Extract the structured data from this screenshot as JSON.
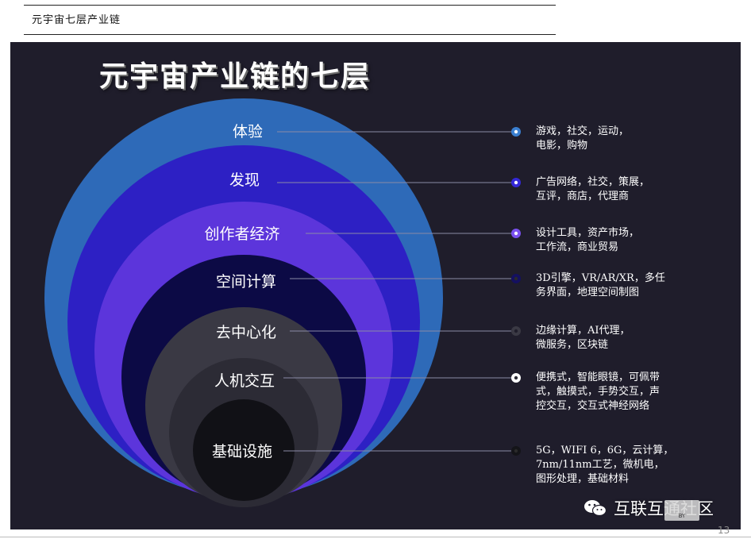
{
  "header": {
    "title": "元宇宙七层产业链"
  },
  "panel": {
    "title": "元宇宙产业链的七层",
    "layers": [
      {
        "label": "体验",
        "color": "#2e6ab8",
        "dot": "#3a7fd0",
        "desc": [
          "游戏，社交，运动，",
          "电影，购物"
        ]
      },
      {
        "label": "发现",
        "color": "#2d20c4",
        "dot": "#3428d8",
        "desc": [
          "广告网络，社交，策展，",
          "互评，商店，代理商"
        ]
      },
      {
        "label": "创作者经济",
        "color": "#5c35db",
        "dot": "#7a50f0",
        "desc": [
          "设计工具，资产市场，",
          "工作流，商业贸易"
        ]
      },
      {
        "label": "空间计算",
        "color": "#0c0a45",
        "dot": "#141060",
        "desc": [
          "3D引擎，VR/AR/XR，多任",
          "务界面，地理空间制图"
        ]
      },
      {
        "label": "去中心化",
        "color": "#3a3944",
        "dot": "#3a3944",
        "desc": [
          "边缘计算，AI代理，",
          "微服务，区块链"
        ]
      },
      {
        "label": "人机交互",
        "color": "#2c2b35",
        "dot": "#ffffff",
        "desc": [
          "便携式，智能眼镜，可佩带",
          "式，触摸式，手势交互，声",
          "控交互，交互式神经网络"
        ]
      },
      {
        "label": "基础设施",
        "color": "#111116",
        "dot": "#141418",
        "desc": [
          "5G，WIFI 6，6G，云计算，",
          "7nm/11nm工艺，微机电，",
          "图形处理，基础材料"
        ]
      }
    ]
  },
  "watermark": {
    "text": "互联互通社区",
    "badge": "BY"
  },
  "page": {
    "number": "13"
  }
}
